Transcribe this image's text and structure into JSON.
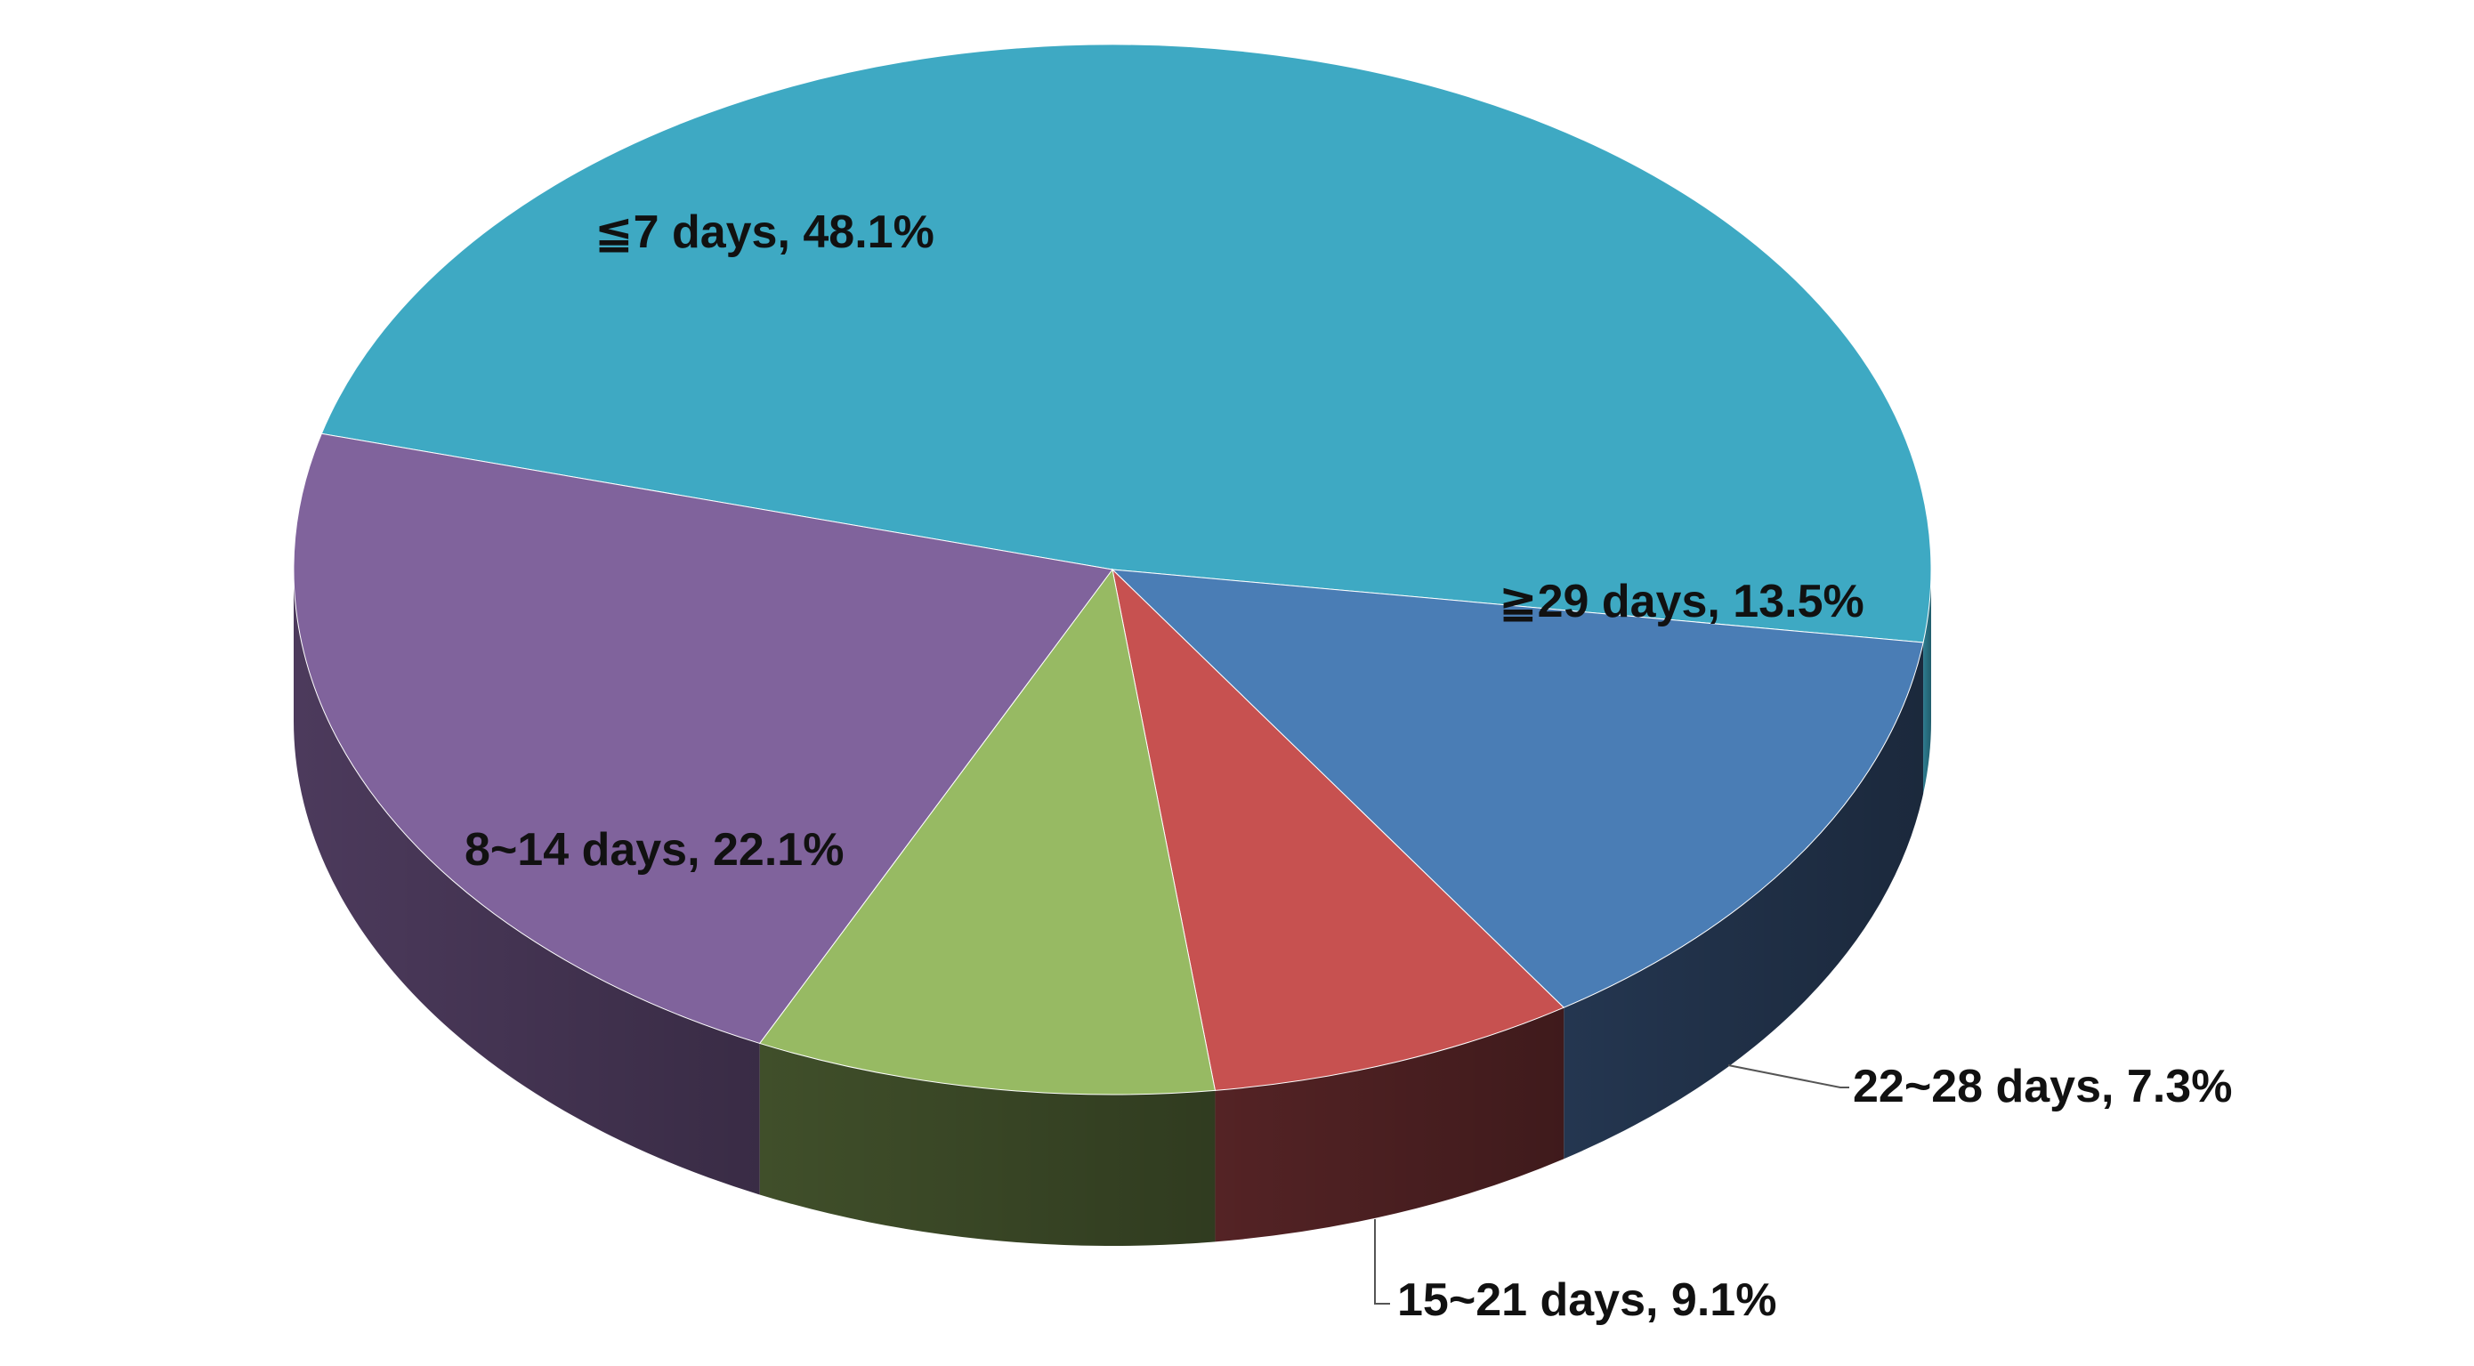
{
  "chart_data": {
    "type": "pie",
    "style": "3d",
    "title": "",
    "slices": [
      {
        "label": "≦7 days, 48.1%",
        "category": "≦7 days",
        "value": 48.1,
        "color": "#3EA9C3",
        "side_color": "#2C7C90"
      },
      {
        "label": "≧29 days, 13.5%",
        "category": "≧29 days",
        "value": 13.5,
        "color": "#4A7DB5",
        "side_color": "#243650"
      },
      {
        "label": "22~28 days, 7.3%",
        "category": "22~28 days",
        "value": 7.3,
        "color": "#C75150",
        "side_color": "#542325"
      },
      {
        "label": "15~21 days, 9.1%",
        "category": "15~21 days",
        "value": 9.1,
        "color": "#97BA63",
        "side_color": "#404F2A"
      },
      {
        "label": "8~14 days, 22.1%",
        "category": "8~14 days",
        "value": 22.1,
        "color": "#80639C",
        "side_color": "#4C3A5C"
      }
    ],
    "legend": "none",
    "data_labels": "on-slice-and-leader-lines"
  }
}
